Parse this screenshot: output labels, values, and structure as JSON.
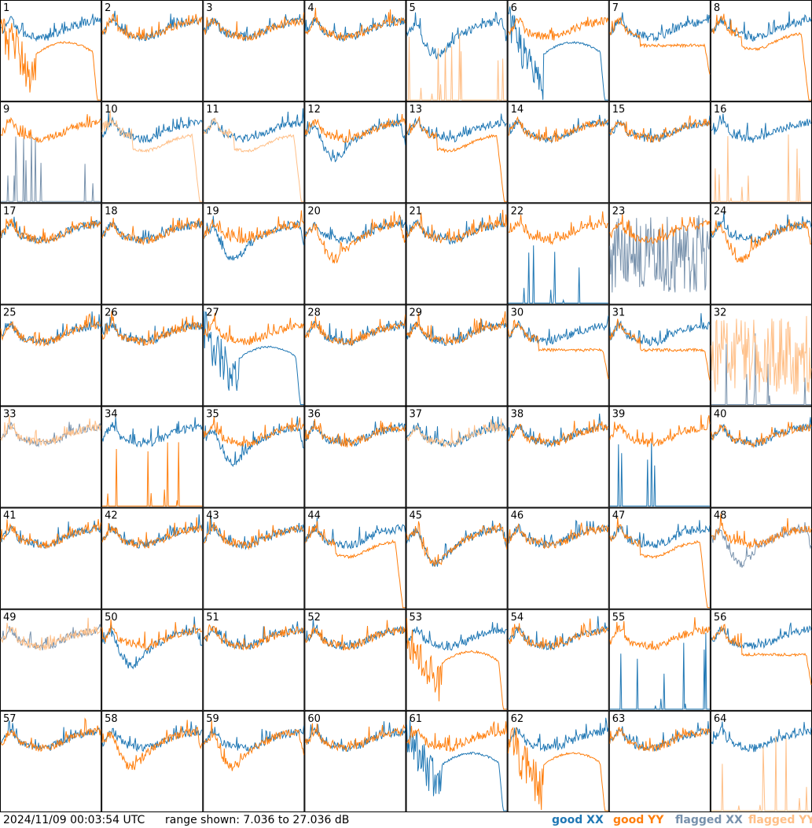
{
  "footer": {
    "timestamp": "2024/11/09 00:03:54 UTC",
    "range_text": "range shown: 7.036 to 27.036 dB"
  },
  "legend": [
    {
      "label": "good XX",
      "color": "#1f77b4"
    },
    {
      "label": "good YY",
      "color": "#ff7f0e"
    },
    {
      "label": "flagged XX",
      "color": "#7791ac"
    },
    {
      "label": "flagged YY",
      "color": "#ffbf87"
    }
  ],
  "chart_data": {
    "type": "line",
    "grid": {
      "rows": 8,
      "cols": 8
    },
    "ylim": [
      7.036,
      27.036
    ],
    "yunit": "dB",
    "panels": [
      {
        "n": "1",
        "xx": {
          "shape": "normal",
          "state": "good"
        },
        "yy": {
          "shape": "bigdip",
          "state": "good"
        }
      },
      {
        "n": "2",
        "xx": {
          "shape": "normal",
          "state": "good"
        },
        "yy": {
          "shape": "normal",
          "state": "good"
        }
      },
      {
        "n": "3",
        "xx": {
          "shape": "normal",
          "state": "good"
        },
        "yy": {
          "shape": "normal",
          "state": "good"
        }
      },
      {
        "n": "4",
        "xx": {
          "shape": "normal",
          "state": "good"
        },
        "yy": {
          "shape": "normal",
          "state": "good"
        }
      },
      {
        "n": "5",
        "xx": {
          "shape": "dip",
          "state": "good"
        },
        "yy": {
          "shape": "spikes",
          "state": "flagged"
        }
      },
      {
        "n": "6",
        "xx": {
          "shape": "bigdip",
          "state": "good"
        },
        "yy": {
          "shape": "normal",
          "state": "good"
        }
      },
      {
        "n": "7",
        "xx": {
          "shape": "normal",
          "state": "good"
        },
        "yy": {
          "shape": "flat",
          "state": "good"
        }
      },
      {
        "n": "8",
        "xx": {
          "shape": "normal",
          "state": "good"
        },
        "yy": {
          "shape": "droop",
          "state": "good"
        }
      },
      {
        "n": "9",
        "xx": {
          "shape": "spikes",
          "state": "flagged"
        },
        "yy": {
          "shape": "normal",
          "state": "good"
        }
      },
      {
        "n": "10",
        "xx": {
          "shape": "normal",
          "state": "good"
        },
        "yy": {
          "shape": "droop",
          "state": "flagged"
        }
      },
      {
        "n": "11",
        "xx": {
          "shape": "normal",
          "state": "good"
        },
        "yy": {
          "shape": "droop",
          "state": "flagged"
        }
      },
      {
        "n": "12",
        "xx": {
          "shape": "dip",
          "state": "good"
        },
        "yy": {
          "shape": "normal",
          "state": "good"
        }
      },
      {
        "n": "13",
        "xx": {
          "shape": "normal",
          "state": "good"
        },
        "yy": {
          "shape": "droop",
          "state": "good"
        }
      },
      {
        "n": "14",
        "xx": {
          "shape": "normal",
          "state": "good"
        },
        "yy": {
          "shape": "normal",
          "state": "good"
        }
      },
      {
        "n": "15",
        "xx": {
          "shape": "normal",
          "state": "good"
        },
        "yy": {
          "shape": "normal",
          "state": "good"
        }
      },
      {
        "n": "16",
        "xx": {
          "shape": "normal",
          "state": "good"
        },
        "yy": {
          "shape": "spikes",
          "state": "flagged"
        }
      },
      {
        "n": "17",
        "xx": {
          "shape": "normal",
          "state": "good"
        },
        "yy": {
          "shape": "normal",
          "state": "good"
        }
      },
      {
        "n": "18",
        "xx": {
          "shape": "normal",
          "state": "good"
        },
        "yy": {
          "shape": "normal",
          "state": "good"
        }
      },
      {
        "n": "19",
        "xx": {
          "shape": "dip",
          "state": "good"
        },
        "yy": {
          "shape": "normal",
          "state": "good"
        }
      },
      {
        "n": "20",
        "xx": {
          "shape": "normal",
          "state": "good"
        },
        "yy": {
          "shape": "dip",
          "state": "good"
        }
      },
      {
        "n": "21",
        "xx": {
          "shape": "normal",
          "state": "good"
        },
        "yy": {
          "shape": "normal",
          "state": "good"
        }
      },
      {
        "n": "22",
        "xx": {
          "shape": "spikes",
          "state": "good"
        },
        "yy": {
          "shape": "normal",
          "state": "good"
        }
      },
      {
        "n": "23",
        "xx": {
          "shape": "noise",
          "state": "flagged"
        },
        "yy": {
          "shape": "normal",
          "state": "good"
        }
      },
      {
        "n": "24",
        "xx": {
          "shape": "normal",
          "state": "good"
        },
        "yy": {
          "shape": "dip",
          "state": "good"
        }
      },
      {
        "n": "25",
        "xx": {
          "shape": "normal",
          "state": "good"
        },
        "yy": {
          "shape": "normal",
          "state": "good"
        }
      },
      {
        "n": "26",
        "xx": {
          "shape": "normal",
          "state": "good"
        },
        "yy": {
          "shape": "normal",
          "state": "good"
        }
      },
      {
        "n": "27",
        "xx": {
          "shape": "bigdip",
          "state": "good"
        },
        "yy": {
          "shape": "normal",
          "state": "good"
        }
      },
      {
        "n": "28",
        "xx": {
          "shape": "normal",
          "state": "good"
        },
        "yy": {
          "shape": "normal",
          "state": "good"
        }
      },
      {
        "n": "29",
        "xx": {
          "shape": "normal",
          "state": "good"
        },
        "yy": {
          "shape": "normal",
          "state": "good"
        }
      },
      {
        "n": "30",
        "xx": {
          "shape": "normal",
          "state": "good"
        },
        "yy": {
          "shape": "flat",
          "state": "good"
        }
      },
      {
        "n": "31",
        "xx": {
          "shape": "normal",
          "state": "good"
        },
        "yy": {
          "shape": "flat",
          "state": "good"
        }
      },
      {
        "n": "32",
        "xx": {
          "shape": "spikes",
          "state": "flagged"
        },
        "yy": {
          "shape": "noise",
          "state": "flagged"
        }
      },
      {
        "n": "33",
        "xx": {
          "shape": "normal",
          "state": "flagged"
        },
        "yy": {
          "shape": "normal",
          "state": "flagged"
        }
      },
      {
        "n": "34",
        "xx": {
          "shape": "normal",
          "state": "good"
        },
        "yy": {
          "shape": "spikes",
          "state": "good"
        }
      },
      {
        "n": "35",
        "xx": {
          "shape": "dip",
          "state": "good"
        },
        "yy": {
          "shape": "normal",
          "state": "good"
        }
      },
      {
        "n": "36",
        "xx": {
          "shape": "normal",
          "state": "good"
        },
        "yy": {
          "shape": "normal",
          "state": "good"
        }
      },
      {
        "n": "37",
        "xx": {
          "shape": "normal",
          "state": "good"
        },
        "yy": {
          "shape": "normal",
          "state": "flagged"
        }
      },
      {
        "n": "38",
        "xx": {
          "shape": "normal",
          "state": "good"
        },
        "yy": {
          "shape": "normal",
          "state": "good"
        }
      },
      {
        "n": "39",
        "xx": {
          "shape": "spikes",
          "state": "good"
        },
        "yy": {
          "shape": "normal",
          "state": "good"
        }
      },
      {
        "n": "40",
        "xx": {
          "shape": "normal",
          "state": "good"
        },
        "yy": {
          "shape": "normal",
          "state": "good"
        }
      },
      {
        "n": "41",
        "xx": {
          "shape": "normal",
          "state": "good"
        },
        "yy": {
          "shape": "normal",
          "state": "good"
        }
      },
      {
        "n": "42",
        "xx": {
          "shape": "normal",
          "state": "good"
        },
        "yy": {
          "shape": "normal",
          "state": "good"
        }
      },
      {
        "n": "43",
        "xx": {
          "shape": "normal",
          "state": "good"
        },
        "yy": {
          "shape": "normal",
          "state": "good"
        }
      },
      {
        "n": "44",
        "xx": {
          "shape": "normal",
          "state": "good"
        },
        "yy": {
          "shape": "droop",
          "state": "good"
        }
      },
      {
        "n": "45",
        "xx": {
          "shape": "dip",
          "state": "good"
        },
        "yy": {
          "shape": "dip",
          "state": "good"
        }
      },
      {
        "n": "46",
        "xx": {
          "shape": "normal",
          "state": "good"
        },
        "yy": {
          "shape": "normal",
          "state": "good"
        }
      },
      {
        "n": "47",
        "xx": {
          "shape": "normal",
          "state": "good"
        },
        "yy": {
          "shape": "droop",
          "state": "good"
        }
      },
      {
        "n": "48",
        "xx": {
          "shape": "dip",
          "state": "flagged"
        },
        "yy": {
          "shape": "normal",
          "state": "good"
        }
      },
      {
        "n": "49",
        "xx": {
          "shape": "normal",
          "state": "flagged"
        },
        "yy": {
          "shape": "normal",
          "state": "flagged"
        }
      },
      {
        "n": "50",
        "xx": {
          "shape": "dip",
          "state": "good"
        },
        "yy": {
          "shape": "normal",
          "state": "good"
        }
      },
      {
        "n": "51",
        "xx": {
          "shape": "normal",
          "state": "good"
        },
        "yy": {
          "shape": "normal",
          "state": "good"
        }
      },
      {
        "n": "52",
        "xx": {
          "shape": "normal",
          "state": "good"
        },
        "yy": {
          "shape": "normal",
          "state": "good"
        }
      },
      {
        "n": "53",
        "xx": {
          "shape": "normal",
          "state": "good"
        },
        "yy": {
          "shape": "bigdip",
          "state": "good"
        }
      },
      {
        "n": "54",
        "xx": {
          "shape": "normal",
          "state": "good"
        },
        "yy": {
          "shape": "normal",
          "state": "good"
        }
      },
      {
        "n": "55",
        "xx": {
          "shape": "spikes",
          "state": "good"
        },
        "yy": {
          "shape": "normal",
          "state": "good"
        }
      },
      {
        "n": "56",
        "xx": {
          "shape": "normal",
          "state": "good"
        },
        "yy": {
          "shape": "flat",
          "state": "good"
        }
      },
      {
        "n": "57",
        "xx": {
          "shape": "normal",
          "state": "good"
        },
        "yy": {
          "shape": "normal",
          "state": "good"
        }
      },
      {
        "n": "58",
        "xx": {
          "shape": "normal",
          "state": "good"
        },
        "yy": {
          "shape": "dip",
          "state": "good"
        }
      },
      {
        "n": "59",
        "xx": {
          "shape": "normal",
          "state": "good"
        },
        "yy": {
          "shape": "dip",
          "state": "good"
        }
      },
      {
        "n": "60",
        "xx": {
          "shape": "normal",
          "state": "good"
        },
        "yy": {
          "shape": "normal",
          "state": "good"
        }
      },
      {
        "n": "61",
        "xx": {
          "shape": "bigdip",
          "state": "good"
        },
        "yy": {
          "shape": "normal",
          "state": "good"
        }
      },
      {
        "n": "62",
        "xx": {
          "shape": "normal",
          "state": "good"
        },
        "yy": {
          "shape": "bigdip",
          "state": "good"
        }
      },
      {
        "n": "63",
        "xx": {
          "shape": "normal",
          "state": "good"
        },
        "yy": {
          "shape": "normal",
          "state": "good"
        }
      },
      {
        "n": "64",
        "xx": {
          "shape": "normal",
          "state": "good"
        },
        "yy": {
          "shape": "spikes",
          "state": "flagged"
        }
      }
    ]
  }
}
